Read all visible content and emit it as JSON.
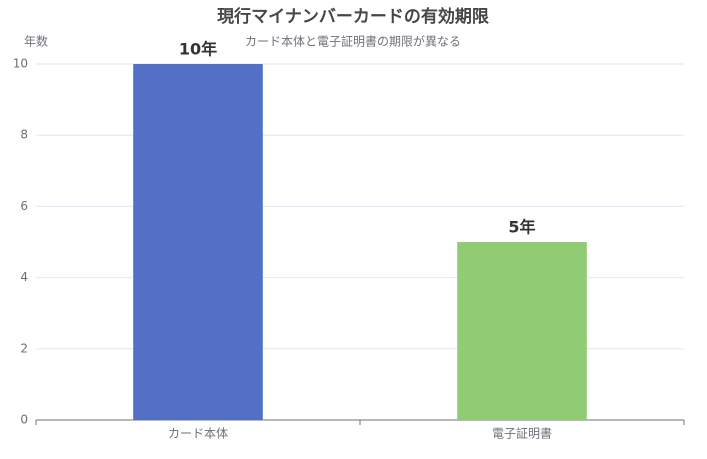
{
  "chart_data": {
    "type": "bar",
    "title": "現行マイナンバーカードの有効期限",
    "subtitle": "カード本体と電子証明書の期限が異なる",
    "y_axis_label": "年数",
    "categories": [
      "カード本体",
      "電子証明書"
    ],
    "values": [
      10,
      5
    ],
    "value_labels": [
      "10年",
      "5年"
    ],
    "colors": [
      "#5470c6",
      "#91cc75"
    ],
    "ylim": [
      0,
      10
    ],
    "yticks": [
      0,
      2,
      4,
      6,
      8,
      10
    ],
    "grid": true
  }
}
